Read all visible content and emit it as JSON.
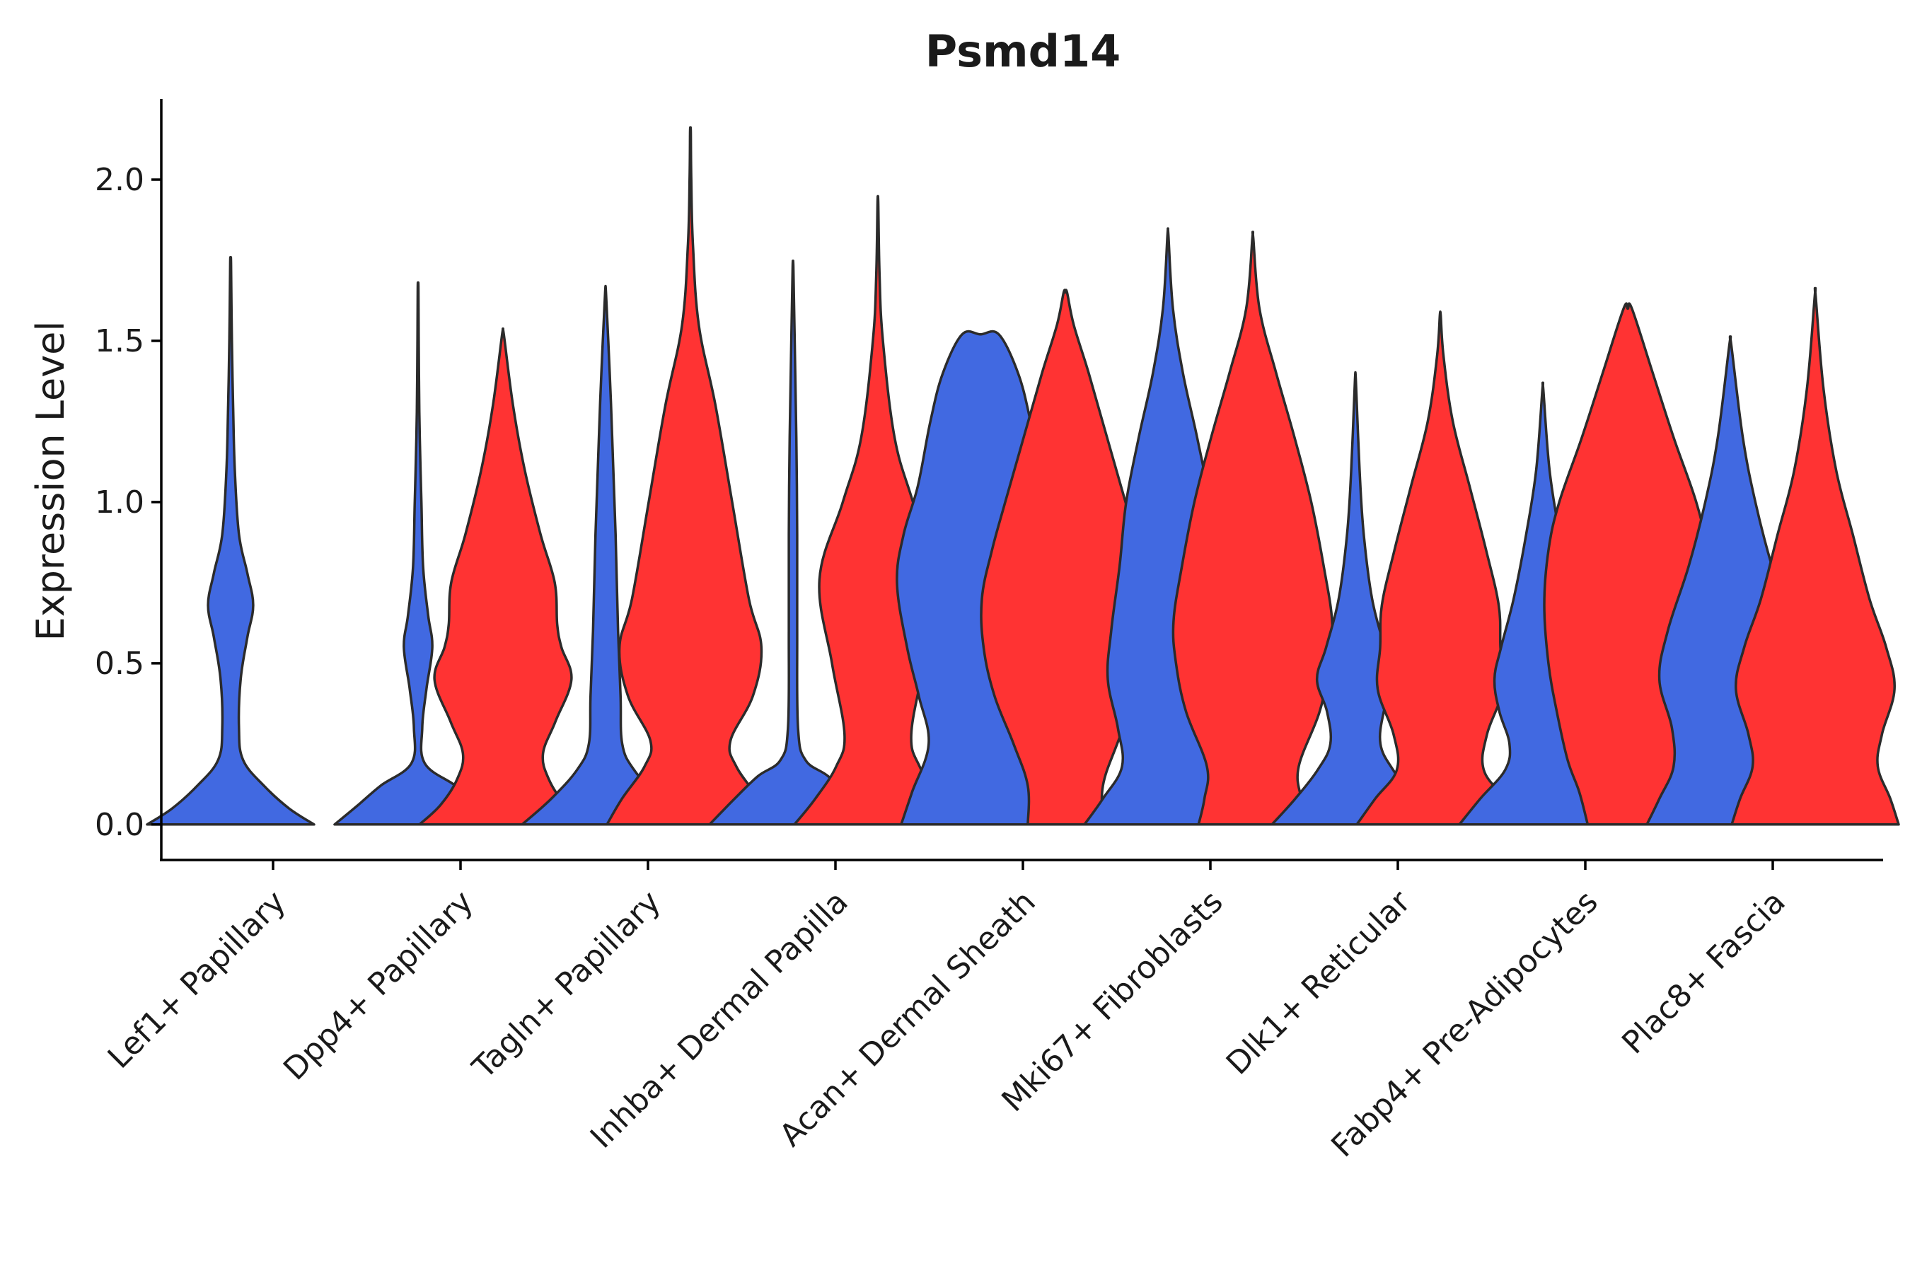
{
  "chart_data": {
    "type": "violin",
    "title": "Psmd14",
    "ylabel": "Expression Level",
    "xlabel": "",
    "ylim": [
      -0.11,
      2.25
    ],
    "yticks": [
      0.0,
      0.5,
      1.0,
      1.5,
      2.0
    ],
    "ytick_labels": [
      "0.0",
      "0.5",
      "1.0",
      "1.5",
      "2.0"
    ],
    "colors": {
      "group1": "#4169E1",
      "group2": "#FF3333"
    },
    "categories": [
      "Lef1+ Papillary",
      "Dpp4+ Papillary",
      "Tagln+ Papillary",
      "Inhba+ Dermal Papilla",
      "Acan+ Dermal Sheath",
      "Mki67+ Fibroblasts",
      "Dlk1+ Reticular",
      "Fabp4+ Pre-Adipocytes",
      "Plac8+ Fascia"
    ],
    "violins": [
      {
        "category": 0,
        "group": "group1",
        "max": 1.74,
        "profile": [
          [
            0.0,
            1.0
          ],
          [
            0.05,
            0.7
          ],
          [
            0.12,
            0.4
          ],
          [
            0.2,
            0.15
          ],
          [
            0.3,
            0.1
          ],
          [
            0.45,
            0.12
          ],
          [
            0.58,
            0.2
          ],
          [
            0.68,
            0.27
          ],
          [
            0.78,
            0.2
          ],
          [
            0.9,
            0.1
          ],
          [
            1.1,
            0.05
          ],
          [
            1.3,
            0.03
          ],
          [
            1.5,
            0.015
          ],
          [
            1.74,
            0.005
          ]
        ]
      },
      {
        "category": 1,
        "group": "group1",
        "max": 1.66,
        "profile": [
          [
            0.0,
            1.0
          ],
          [
            0.06,
            0.72
          ],
          [
            0.12,
            0.45
          ],
          [
            0.19,
            0.08
          ],
          [
            0.3,
            0.05
          ],
          [
            0.42,
            0.1
          ],
          [
            0.55,
            0.17
          ],
          [
            0.65,
            0.12
          ],
          [
            0.8,
            0.06
          ],
          [
            1.0,
            0.04
          ],
          [
            1.2,
            0.02
          ],
          [
            1.4,
            0.01
          ],
          [
            1.66,
            0.004
          ]
        ]
      },
      {
        "category": 1,
        "group": "group2",
        "max": 1.52,
        "profile": [
          [
            0.0,
            1.0
          ],
          [
            0.06,
            0.75
          ],
          [
            0.14,
            0.55
          ],
          [
            0.22,
            0.48
          ],
          [
            0.32,
            0.63
          ],
          [
            0.45,
            0.82
          ],
          [
            0.55,
            0.7
          ],
          [
            0.62,
            0.65
          ],
          [
            0.75,
            0.62
          ],
          [
            0.9,
            0.45
          ],
          [
            1.1,
            0.26
          ],
          [
            1.3,
            0.12
          ],
          [
            1.52,
            0.01
          ]
        ]
      },
      {
        "category": 2,
        "group": "group1",
        "max": 1.65,
        "profile": [
          [
            0.0,
            1.0
          ],
          [
            0.08,
            0.65
          ],
          [
            0.17,
            0.34
          ],
          [
            0.25,
            0.2
          ],
          [
            0.4,
            0.18
          ],
          [
            0.6,
            0.15
          ],
          [
            0.9,
            0.12
          ],
          [
            1.2,
            0.08
          ],
          [
            1.4,
            0.05
          ],
          [
            1.65,
            0.005
          ]
        ]
      },
      {
        "category": 2,
        "group": "group2",
        "max": 2.15,
        "profile": [
          [
            0.0,
            1.0
          ],
          [
            0.08,
            0.82
          ],
          [
            0.18,
            0.55
          ],
          [
            0.26,
            0.48
          ],
          [
            0.4,
            0.75
          ],
          [
            0.55,
            0.85
          ],
          [
            0.7,
            0.7
          ],
          [
            1.0,
            0.5
          ],
          [
            1.3,
            0.3
          ],
          [
            1.55,
            0.1
          ],
          [
            1.8,
            0.03
          ],
          [
            2.0,
            0.01
          ],
          [
            2.15,
            0.004
          ]
        ]
      },
      {
        "category": 3,
        "group": "group1",
        "max": 1.73,
        "profile": [
          [
            0.0,
            1.0
          ],
          [
            0.08,
            0.7
          ],
          [
            0.15,
            0.42
          ],
          [
            0.2,
            0.15
          ],
          [
            0.3,
            0.06
          ],
          [
            0.6,
            0.05
          ],
          [
            0.9,
            0.05
          ],
          [
            1.2,
            0.04
          ],
          [
            1.5,
            0.02
          ],
          [
            1.73,
            0.004
          ]
        ]
      },
      {
        "category": 3,
        "group": "group2",
        "max": 1.93,
        "profile": [
          [
            0.0,
            1.0
          ],
          [
            0.08,
            0.75
          ],
          [
            0.18,
            0.5
          ],
          [
            0.28,
            0.4
          ],
          [
            0.5,
            0.55
          ],
          [
            0.76,
            0.7
          ],
          [
            1.0,
            0.42
          ],
          [
            1.2,
            0.2
          ],
          [
            1.5,
            0.06
          ],
          [
            1.7,
            0.02
          ],
          [
            1.93,
            0.004
          ]
        ]
      },
      {
        "category": 4,
        "group": "group1",
        "max": 1.52,
        "profile": [
          [
            0.0,
            0.95
          ],
          [
            0.1,
            0.82
          ],
          [
            0.25,
            0.62
          ],
          [
            0.4,
            0.74
          ],
          [
            0.55,
            0.88
          ],
          [
            0.75,
            1.0
          ],
          [
            0.9,
            0.92
          ],
          [
            1.05,
            0.75
          ],
          [
            1.25,
            0.6
          ],
          [
            1.4,
            0.45
          ],
          [
            1.52,
            0.22
          ]
        ]
      },
      {
        "category": 4,
        "group": "group2",
        "max": 1.65,
        "profile": [
          [
            0.0,
            0.45
          ],
          [
            0.12,
            0.45
          ],
          [
            0.25,
            0.62
          ],
          [
            0.4,
            0.85
          ],
          [
            0.55,
            0.98
          ],
          [
            0.7,
            1.0
          ],
          [
            0.85,
            0.88
          ],
          [
            1.0,
            0.72
          ],
          [
            1.2,
            0.5
          ],
          [
            1.4,
            0.28
          ],
          [
            1.55,
            0.1
          ],
          [
            1.65,
            0.02
          ]
        ]
      },
      {
        "category": 5,
        "group": "group1",
        "max": 1.83,
        "profile": [
          [
            0.0,
            1.0
          ],
          [
            0.08,
            0.78
          ],
          [
            0.18,
            0.55
          ],
          [
            0.3,
            0.6
          ],
          [
            0.45,
            0.72
          ],
          [
            0.6,
            0.68
          ],
          [
            0.8,
            0.58
          ],
          [
            1.0,
            0.5
          ],
          [
            1.2,
            0.35
          ],
          [
            1.4,
            0.18
          ],
          [
            1.6,
            0.06
          ],
          [
            1.83,
            0.005
          ]
        ]
      },
      {
        "category": 5,
        "group": "group2",
        "max": 1.82,
        "profile": [
          [
            0.0,
            0.65
          ],
          [
            0.08,
            0.58
          ],
          [
            0.18,
            0.55
          ],
          [
            0.35,
            0.8
          ],
          [
            0.5,
            0.92
          ],
          [
            0.63,
            0.95
          ],
          [
            0.8,
            0.85
          ],
          [
            1.0,
            0.7
          ],
          [
            1.2,
            0.5
          ],
          [
            1.4,
            0.28
          ],
          [
            1.6,
            0.08
          ],
          [
            1.82,
            0.005
          ]
        ]
      },
      {
        "category": 6,
        "group": "group1",
        "max": 1.38,
        "profile": [
          [
            0.0,
            1.0
          ],
          [
            0.08,
            0.72
          ],
          [
            0.17,
            0.45
          ],
          [
            0.25,
            0.3
          ],
          [
            0.35,
            0.34
          ],
          [
            0.45,
            0.46
          ],
          [
            0.55,
            0.35
          ],
          [
            0.7,
            0.2
          ],
          [
            0.9,
            0.1
          ],
          [
            1.1,
            0.05
          ],
          [
            1.38,
            0.005
          ]
        ]
      },
      {
        "category": 6,
        "group": "group2",
        "max": 1.58,
        "profile": [
          [
            0.0,
            1.0
          ],
          [
            0.08,
            0.78
          ],
          [
            0.17,
            0.52
          ],
          [
            0.28,
            0.56
          ],
          [
            0.42,
            0.75
          ],
          [
            0.55,
            0.72
          ],
          [
            0.68,
            0.7
          ],
          [
            0.85,
            0.55
          ],
          [
            1.05,
            0.35
          ],
          [
            1.25,
            0.15
          ],
          [
            1.45,
            0.04
          ],
          [
            1.58,
            0.005
          ]
        ]
      },
      {
        "category": 7,
        "group": "group1",
        "max": 1.35,
        "profile": [
          [
            0.0,
            1.0
          ],
          [
            0.08,
            0.75
          ],
          [
            0.17,
            0.45
          ],
          [
            0.25,
            0.4
          ],
          [
            0.35,
            0.52
          ],
          [
            0.45,
            0.58
          ],
          [
            0.55,
            0.5
          ],
          [
            0.7,
            0.35
          ],
          [
            0.9,
            0.2
          ],
          [
            1.1,
            0.08
          ],
          [
            1.35,
            0.005
          ]
        ]
      },
      {
        "category": 7,
        "group": "group2",
        "max": 1.6,
        "profile": [
          [
            0.0,
            0.48
          ],
          [
            0.1,
            0.58
          ],
          [
            0.2,
            0.72
          ],
          [
            0.35,
            0.85
          ],
          [
            0.5,
            0.95
          ],
          [
            0.68,
            1.0
          ],
          [
            0.85,
            0.95
          ],
          [
            1.0,
            0.82
          ],
          [
            1.2,
            0.55
          ],
          [
            1.4,
            0.3
          ],
          [
            1.6,
            0.05
          ]
        ]
      },
      {
        "category": 8,
        "group": "group1",
        "max": 1.49,
        "profile": [
          [
            0.0,
            1.0
          ],
          [
            0.08,
            0.85
          ],
          [
            0.18,
            0.68
          ],
          [
            0.3,
            0.7
          ],
          [
            0.45,
            0.85
          ],
          [
            0.6,
            0.75
          ],
          [
            0.8,
            0.5
          ],
          [
            1.0,
            0.3
          ],
          [
            1.2,
            0.15
          ],
          [
            1.49,
            0.01
          ]
        ]
      },
      {
        "category": 8,
        "group": "group2",
        "max": 1.64,
        "profile": [
          [
            0.0,
            1.0
          ],
          [
            0.08,
            0.9
          ],
          [
            0.18,
            0.75
          ],
          [
            0.28,
            0.8
          ],
          [
            0.42,
            0.95
          ],
          [
            0.55,
            0.85
          ],
          [
            0.7,
            0.65
          ],
          [
            0.9,
            0.45
          ],
          [
            1.1,
            0.25
          ],
          [
            1.35,
            0.1
          ],
          [
            1.64,
            0.005
          ]
        ]
      }
    ]
  }
}
